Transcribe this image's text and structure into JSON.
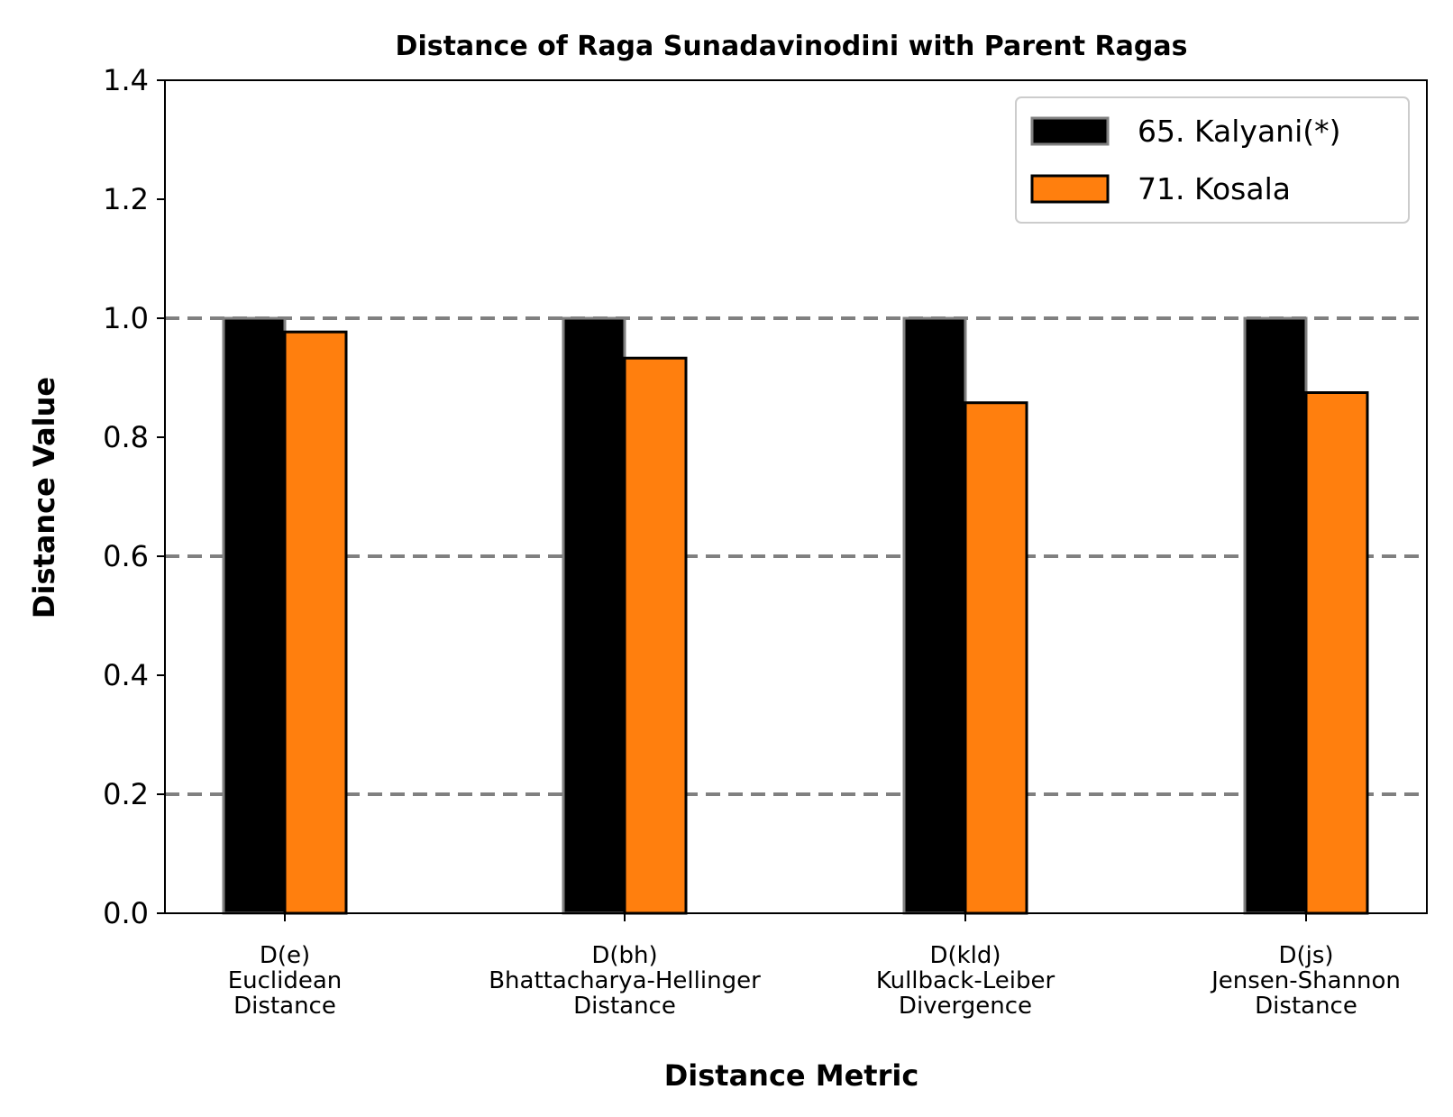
{
  "chart_data": {
    "type": "bar",
    "title": "Distance of Raga Sunadavinodini with Parent Ragas",
    "xlabel": "Distance Metric",
    "ylabel": "Distance Value",
    "ylim": [
      0,
      1.4
    ],
    "yticks": [
      "0.0",
      "0.2",
      "0.4",
      "0.6",
      "0.8",
      "1.0",
      "1.2",
      "1.4"
    ],
    "reference_lines": [
      0.2,
      0.6,
      1.0
    ],
    "categories": [
      [
        "D(e)",
        "Euclidean",
        "Distance"
      ],
      [
        "D(bh)",
        "Bhattacharya-Hellinger",
        "Distance"
      ],
      [
        "D(kld)",
        "Kullback-Leiber",
        "Divergence"
      ],
      [
        "D(js)",
        "Jensen-Shannon",
        "Distance"
      ]
    ],
    "series": [
      {
        "name": "65. Kalyani(*)",
        "values": [
          1.0,
          1.0,
          1.0,
          1.0
        ],
        "color": "#000000",
        "edge": "#808080"
      },
      {
        "name": "71. Kosala",
        "values": [
          0.977,
          0.933,
          0.858,
          0.875
        ],
        "color": "#ff7f0e",
        "edge": "#000000"
      }
    ],
    "legend_position": "top-right",
    "grid": false
  }
}
